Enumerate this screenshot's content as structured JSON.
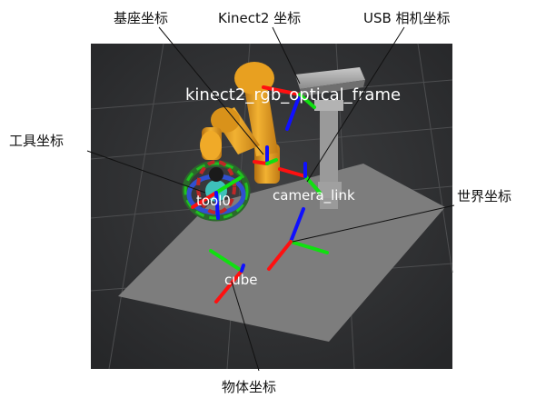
{
  "callouts": {
    "base": "基座坐标",
    "kinect2": "Kinect2  坐标",
    "usb_camera": "USB 相机坐标",
    "tool": "工具坐标",
    "world": "世界坐标",
    "object": "物体坐标"
  },
  "frames": {
    "kinect2_rgb": "kinect2_rgb_optical_frame",
    "tool0": "tool0",
    "camera_link": "camera_link",
    "cube": "cube"
  },
  "colors": {
    "viewport_bg": "#3a3b3d",
    "ground": "#7d7d7d",
    "robot": "#e8a020",
    "axis_x": "#ff1010",
    "axis_y": "#10e010",
    "axis_z": "#1010ff"
  }
}
